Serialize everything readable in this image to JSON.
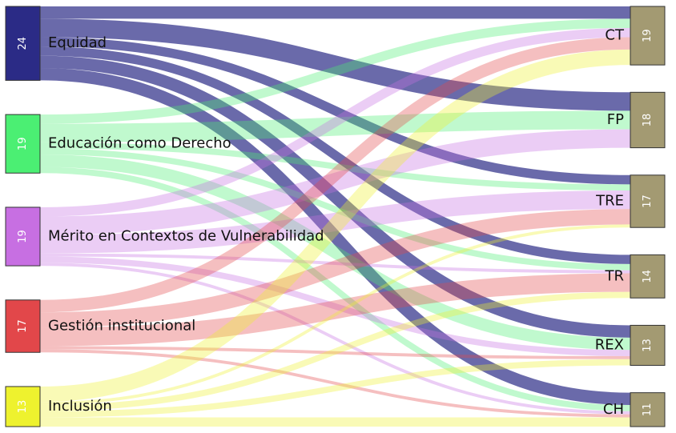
{
  "chart_data": {
    "type": "sankey",
    "sources": [
      {
        "name": "Equidad",
        "value": 24,
        "color": "#2b2b86"
      },
      {
        "name": "Educación como Derecho",
        "value": 19,
        "color": "#4bef73"
      },
      {
        "name": "Mérito en Contextos de Vulnerabilidad",
        "value": 19,
        "color": "#c76fe2"
      },
      {
        "name": "Gestión institucional",
        "value": 17,
        "color": "#e2474a"
      },
      {
        "name": "Inclusión",
        "value": 13,
        "color": "#eef22e"
      }
    ],
    "targets": [
      {
        "name": "CT",
        "value": 19,
        "color": "#a39a72"
      },
      {
        "name": "FP",
        "value": 18,
        "color": "#a39a72"
      },
      {
        "name": "TRE",
        "value": 17,
        "color": "#a39a72"
      },
      {
        "name": "TR",
        "value": 14,
        "color": "#a39a72"
      },
      {
        "name": "REX",
        "value": 13,
        "color": "#a39a72"
      },
      {
        "name": "CH",
        "value": 11,
        "color": "#a39a72"
      }
    ],
    "links": [
      {
        "source": "Equidad",
        "target": "CT",
        "value": 4
      },
      {
        "source": "Equidad",
        "target": "FP",
        "value": 6
      },
      {
        "source": "Equidad",
        "target": "TRE",
        "value": 3
      },
      {
        "source": "Equidad",
        "target": "TR",
        "value": 3
      },
      {
        "source": "Equidad",
        "target": "REX",
        "value": 4
      },
      {
        "source": "Equidad",
        "target": "CH",
        "value": 4
      },
      {
        "source": "Educación como Derecho",
        "target": "CT",
        "value": 3
      },
      {
        "source": "Educación como Derecho",
        "target": "FP",
        "value": 6
      },
      {
        "source": "Educación como Derecho",
        "target": "TRE",
        "value": 2
      },
      {
        "source": "Educación como Derecho",
        "target": "TR",
        "value": 2
      },
      {
        "source": "Educación como Derecho",
        "target": "REX",
        "value": 4
      },
      {
        "source": "Educación como Derecho",
        "target": "CH",
        "value": 2
      },
      {
        "source": "Mérito en Contextos de Vulnerabilidad",
        "target": "CT",
        "value": 3
      },
      {
        "source": "Mérito en Contextos de Vulnerabilidad",
        "target": "FP",
        "value": 6
      },
      {
        "source": "Mérito en Contextos de Vulnerabilidad",
        "target": "TRE",
        "value": 6
      },
      {
        "source": "Mérito en Contextos de Vulnerabilidad",
        "target": "TR",
        "value": 1
      },
      {
        "source": "Mérito en Contextos de Vulnerabilidad",
        "target": "REX",
        "value": 2
      },
      {
        "source": "Mérito en Contextos de Vulnerabilidad",
        "target": "CH",
        "value": 1
      },
      {
        "source": "Gestión institucional",
        "target": "CT",
        "value": 4
      },
      {
        "source": "Gestión institucional",
        "target": "TRE",
        "value": 5
      },
      {
        "source": "Gestión institucional",
        "target": "TR",
        "value": 6
      },
      {
        "source": "Gestión institucional",
        "target": "REX",
        "value": 1
      },
      {
        "source": "Gestión institucional",
        "target": "CH",
        "value": 1
      },
      {
        "source": "Inclusión",
        "target": "CT",
        "value": 5
      },
      {
        "source": "Inclusión",
        "target": "TRE",
        "value": 1
      },
      {
        "source": "Inclusión",
        "target": "TR",
        "value": 2
      },
      {
        "source": "Inclusión",
        "target": "REX",
        "value": 2
      },
      {
        "source": "Inclusión",
        "target": "CH",
        "value": 3
      }
    ]
  }
}
